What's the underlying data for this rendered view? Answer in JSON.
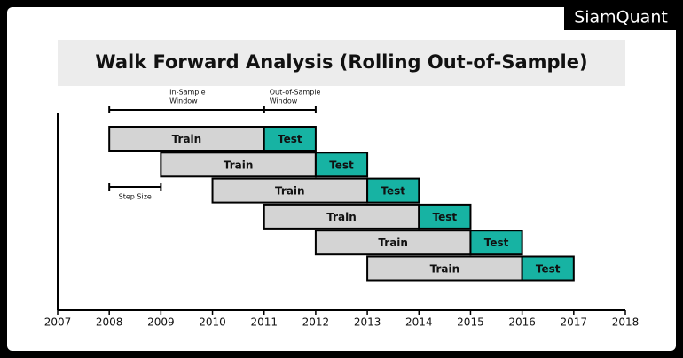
{
  "chart_data": {
    "type": "gantt",
    "brand": "SiamQuant",
    "title": "Walk Forward Analysis (Rolling Out-of-Sample)",
    "xlim": [
      2007,
      2018
    ],
    "xticks": [
      2007,
      2008,
      2009,
      2010,
      2011,
      2012,
      2013,
      2014,
      2015,
      2016,
      2017,
      2018
    ],
    "rows": [
      [
        {
          "label": "Train",
          "start": 2008,
          "end": 2011,
          "color": "#d4d4d4"
        },
        {
          "label": "Test",
          "start": 2011,
          "end": 2012,
          "color": "#17b3a3"
        }
      ],
      [
        {
          "label": "Train",
          "start": 2009,
          "end": 2012,
          "color": "#d4d4d4"
        },
        {
          "label": "Test",
          "start": 2012,
          "end": 2013,
          "color": "#17b3a3"
        }
      ],
      [
        {
          "label": "Train",
          "start": 2010,
          "end": 2013,
          "color": "#d4d4d4"
        },
        {
          "label": "Test",
          "start": 2013,
          "end": 2014,
          "color": "#17b3a3"
        }
      ],
      [
        {
          "label": "Train",
          "start": 2011,
          "end": 2014,
          "color": "#d4d4d4"
        },
        {
          "label": "Test",
          "start": 2014,
          "end": 2015,
          "color": "#17b3a3"
        }
      ],
      [
        {
          "label": "Train",
          "start": 2012,
          "end": 2015,
          "color": "#d4d4d4"
        },
        {
          "label": "Test",
          "start": 2015,
          "end": 2016,
          "color": "#17b3a3"
        }
      ],
      [
        {
          "label": "Train",
          "start": 2013,
          "end": 2016,
          "color": "#d4d4d4"
        },
        {
          "label": "Test",
          "start": 2016,
          "end": 2017,
          "color": "#17b3a3"
        }
      ]
    ],
    "brackets": [
      {
        "lines": [
          "In-Sample",
          "Window"
        ],
        "start": 2008,
        "end": 2011
      },
      {
        "lines": [
          "Out-of-Sample",
          "Window"
        ],
        "start": 2011,
        "end": 2012
      },
      {
        "lines": [
          "Step Size"
        ],
        "start": 2008,
        "end": 2009
      }
    ]
  }
}
